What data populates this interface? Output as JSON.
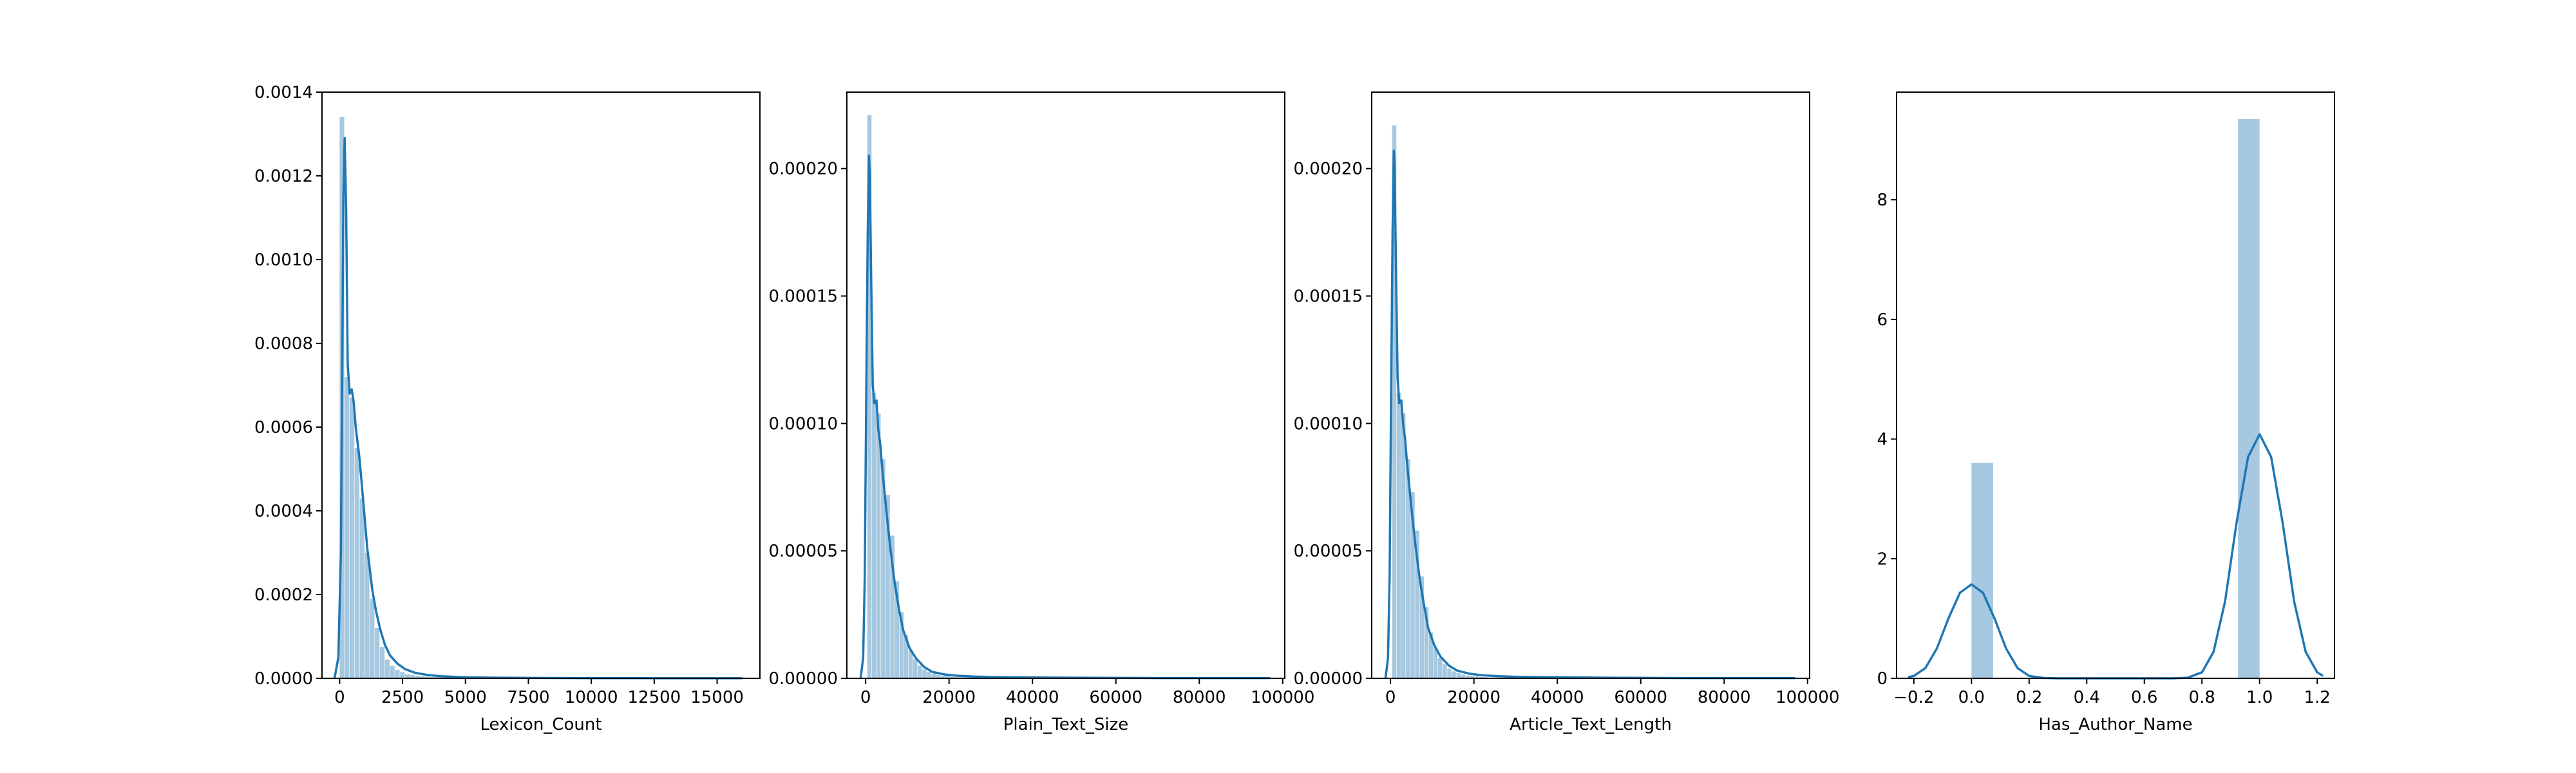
{
  "colors": {
    "hist": "#a6c8e0",
    "kde": "#1f77b4",
    "axes": "#000000"
  },
  "chart_data": [
    {
      "type": "bar",
      "title": "",
      "xlabel": "Lexicon_Count",
      "ylabel": "",
      "xlim": [
        -700,
        16700
      ],
      "ylim": [
        0,
        0.0014
      ],
      "xticks": [
        0,
        2500,
        5000,
        7500,
        10000,
        12500,
        15000
      ],
      "xtick_labels": [
        "0",
        "2500",
        "5000",
        "7500",
        "10000",
        "12500",
        "15000"
      ],
      "yticks": [
        0,
        0.0002,
        0.0004,
        0.0006,
        0.0008,
        0.001,
        0.0012,
        0.0014
      ],
      "ytick_labels": [
        "0.0000",
        "0.0002",
        "0.0004",
        "0.0006",
        "0.0008",
        "0.0010",
        "0.0012",
        "0.0014"
      ],
      "bin_width": 200,
      "bin_start": 0,
      "hist_values": [
        0.00134,
        0.00072,
        0.00067,
        0.00055,
        0.00043,
        0.0003,
        0.00019,
        0.00012,
        7.5e-05,
        4.5e-05,
        3e-05,
        2e-05,
        1.5e-05,
        1e-05,
        8e-06,
        6e-06,
        5e-06,
        4e-06,
        3e-06,
        3e-06,
        2e-06,
        2e-06,
        1.5e-06,
        1.2e-06,
        1e-06,
        1e-06,
        8e-07,
        8e-07,
        6e-07,
        6e-07,
        5e-07,
        5e-07,
        4e-07,
        4e-07,
        3e-07,
        3e-07,
        3e-07,
        2e-07,
        2e-07,
        2e-07
      ],
      "kde": {
        "x": [
          -200,
          -50,
          50,
          100,
          150,
          200,
          260,
          320,
          400,
          480,
          560,
          640,
          720,
          800,
          900,
          1000,
          1100,
          1200,
          1300,
          1450,
          1600,
          1800,
          2000,
          2300,
          2600,
          3000,
          3500,
          4000,
          5000,
          6000,
          8000,
          10000,
          12000,
          14000,
          16000
        ],
        "y": [
          0,
          5e-05,
          0.0003,
          0.0007,
          0.00115,
          0.00129,
          0.00112,
          0.00075,
          0.00068,
          0.00069,
          0.00066,
          0.0006,
          0.00056,
          0.00052,
          0.00045,
          0.00038,
          0.00031,
          0.00026,
          0.00021,
          0.00016,
          0.00012,
          8e-05,
          5.5e-05,
          3.5e-05,
          2.2e-05,
          1.3e-05,
          8e-06,
          5e-06,
          2.5e-06,
          1.5e-06,
          8e-07,
          5e-07,
          3e-07,
          2e-07,
          1e-07
        ]
      }
    },
    {
      "type": "bar",
      "title": "",
      "xlabel": "Plain_Text_Size",
      "ylabel": "",
      "xlim": [
        -4500,
        100500
      ],
      "ylim": [
        0,
        0.00023
      ],
      "xticks": [
        0,
        20000,
        40000,
        60000,
        80000,
        100000
      ],
      "xtick_labels": [
        "0",
        "20000",
        "40000",
        "60000",
        "80000",
        "100000"
      ],
      "yticks": [
        0,
        5e-05,
        0.0001,
        0.00015,
        0.0002
      ],
      "ytick_labels": [
        "0.00000",
        "0.00005",
        "0.00010",
        "0.00015",
        "0.00020"
      ],
      "bin_width": 1100,
      "bin_start": 400,
      "hist_values": [
        0.000221,
        0.000112,
        0.000104,
        8.6e-05,
        7.2e-05,
        5.6e-05,
        3.8e-05,
        2.6e-05,
        1.7e-05,
        1.1e-05,
        7.5e-06,
        5e-06,
        3.5e-06,
        2.5e-06,
        1.8e-06,
        1.3e-06,
        1e-06,
        8e-07,
        6e-07,
        5e-07,
        4e-07,
        3e-07,
        3e-07,
        2e-07,
        2e-07,
        2e-07,
        1e-07,
        1e-07,
        1e-07,
        1e-07,
        1e-07,
        1e-07,
        1e-07,
        1e-07,
        1e-07,
        1e-07,
        1e-07,
        1e-07,
        1e-07,
        1e-07,
        1e-07,
        1e-07,
        1e-07,
        1e-07,
        1e-07,
        1e-07,
        1e-07,
        1e-07,
        1e-07,
        1e-07,
        1e-07,
        1e-07,
        1e-07,
        1e-07,
        1e-07,
        1e-07,
        1e-07,
        1e-07,
        1e-07,
        1e-07,
        1e-07,
        1e-07,
        1e-07,
        1e-07,
        1e-07,
        1e-07,
        1e-07,
        1e-07,
        1e-07,
        1e-07,
        1e-07,
        1e-07,
        1e-07,
        1e-07,
        1e-07,
        1e-07,
        1e-07,
        1e-07,
        1e-07,
        1e-07,
        1e-07,
        1e-07,
        1e-07,
        1e-07,
        1e-07,
        1e-07
      ],
      "kde": {
        "x": [
          -1200,
          -600,
          -200,
          200,
          500,
          800,
          1000,
          1300,
          1700,
          2100,
          2600,
          3000,
          3500,
          4000,
          4600,
          5200,
          6000,
          7000,
          8000,
          9000,
          10500,
          12000,
          14000,
          16000,
          19000,
          22000,
          26000,
          30000,
          40000,
          55000,
          70000,
          85000,
          97000
        ],
        "y": [
          0,
          8e-06,
          4e-05,
          0.00012,
          0.000175,
          0.000205,
          0.000198,
          0.00016,
          0.000115,
          0.000108,
          0.000109,
          9.8e-05,
          9.2e-05,
          8.2e-05,
          7.2e-05,
          6.2e-05,
          5e-05,
          3.7e-05,
          2.7e-05,
          1.9e-05,
          1.2e-05,
          8e-06,
          4.5e-06,
          2.5e-06,
          1.5e-06,
          1e-06,
          7e-07,
          5e-07,
          3e-07,
          2e-07,
          1e-07,
          1e-07,
          1e-07
        ]
      }
    },
    {
      "type": "bar",
      "title": "",
      "xlabel": "Article_Text_Length",
      "ylabel": "",
      "xlim": [
        -4500,
        100500
      ],
      "ylim": [
        0,
        0.00023
      ],
      "xticks": [
        0,
        20000,
        40000,
        60000,
        80000,
        100000
      ],
      "xtick_labels": [
        "0",
        "20000",
        "40000",
        "60000",
        "80000",
        "100000"
      ],
      "yticks": [
        0,
        5e-05,
        0.0001,
        0.00015,
        0.0002
      ],
      "ytick_labels": [
        "0.00000",
        "0.00005",
        "0.00010",
        "0.00015",
        "0.00020"
      ],
      "bin_width": 1100,
      "bin_start": 400,
      "hist_values": [
        0.000217,
        0.000112,
        0.000104,
        8.6e-05,
        7.3e-05,
        5.8e-05,
        4e-05,
        2.8e-05,
        1.8e-05,
        1.2e-05,
        8e-06,
        5.5e-06,
        3.8e-06,
        2.7e-06,
        2e-06,
        1.5e-06,
        1.1e-06,
        9e-07,
        7e-07,
        5e-07,
        4e-07,
        3e-07,
        3e-07,
        2e-07,
        2e-07,
        2e-07,
        1e-07,
        1e-07,
        1e-07,
        1e-07,
        1e-07,
        1e-07,
        1e-07,
        1e-07,
        1e-07,
        1e-07,
        1e-07,
        1e-07,
        1e-07,
        1e-07,
        1e-07,
        1e-07,
        1e-07,
        1e-07,
        1e-07,
        1e-07,
        1e-07,
        1e-07,
        1e-07,
        1e-07,
        1e-07,
        1e-07,
        1e-07,
        1e-07,
        1e-07,
        1e-07,
        1e-07,
        1e-07,
        1e-07,
        1e-07,
        1e-07,
        1e-07,
        1e-07,
        1e-07,
        1e-07,
        1e-07,
        1e-07,
        1e-07,
        1e-07,
        1e-07,
        1e-07,
        1e-07,
        1e-07,
        1e-07,
        1e-07,
        1e-07,
        1e-07,
        1e-07,
        1e-07,
        1e-07,
        1e-07,
        1e-07,
        1e-07,
        1e-07,
        1e-07,
        1e-07
      ],
      "kde": {
        "x": [
          -1200,
          -600,
          -200,
          200,
          500,
          800,
          1000,
          1300,
          1700,
          2100,
          2600,
          3000,
          3500,
          4000,
          4600,
          5200,
          6000,
          7000,
          8000,
          9000,
          10500,
          12000,
          14000,
          16000,
          19000,
          22000,
          26000,
          30000,
          40000,
          55000,
          70000,
          85000,
          97000
        ],
        "y": [
          0,
          8e-06,
          4e-05,
          0.00012,
          0.000175,
          0.000207,
          0.0002,
          0.000162,
          0.000118,
          0.000108,
          0.000109,
          0.0001,
          9.4e-05,
          8.4e-05,
          7.4e-05,
          6.4e-05,
          5.2e-05,
          3.9e-05,
          2.9e-05,
          2e-05,
          1.3e-05,
          8.5e-06,
          5e-06,
          3e-06,
          1.8e-06,
          1.2e-06,
          8e-07,
          6e-07,
          4e-07,
          2e-07,
          1e-07,
          1e-07,
          1e-07
        ]
      }
    },
    {
      "type": "bar",
      "title": "",
      "xlabel": "Has_Author_Name",
      "ylabel": "",
      "xlim": [
        -0.26,
        1.26
      ],
      "ylim": [
        0,
        9.8
      ],
      "xticks": [
        -0.2,
        0.0,
        0.2,
        0.4,
        0.6,
        0.8,
        1.0,
        1.2
      ],
      "xtick_labels": [
        "−0.2",
        "0.0",
        "0.2",
        "0.4",
        "0.6",
        "0.8",
        "1.0",
        "1.2"
      ],
      "yticks": [
        0,
        2,
        4,
        6,
        8
      ],
      "ytick_labels": [
        "0",
        "2",
        "4",
        "6",
        "8"
      ],
      "bars": [
        {
          "x0": 0.0,
          "x1": 0.075,
          "value": 3.6
        },
        {
          "x0": 0.925,
          "x1": 1.0,
          "value": 9.35
        }
      ],
      "kde": {
        "x": [
          -0.22,
          -0.2,
          -0.16,
          -0.12,
          -0.08,
          -0.04,
          0.0,
          0.04,
          0.08,
          0.12,
          0.16,
          0.2,
          0.25,
          0.3,
          0.4,
          0.5,
          0.6,
          0.7,
          0.75,
          0.8,
          0.84,
          0.88,
          0.92,
          0.96,
          1.0,
          1.04,
          1.08,
          1.12,
          1.16,
          1.2,
          1.22
        ],
        "y": [
          0.02,
          0.04,
          0.17,
          0.5,
          1.0,
          1.43,
          1.57,
          1.43,
          1.0,
          0.5,
          0.17,
          0.04,
          0.005,
          0,
          0,
          0,
          0,
          0,
          0.01,
          0.1,
          0.44,
          1.28,
          2.6,
          3.7,
          4.08,
          3.7,
          2.6,
          1.28,
          0.44,
          0.1,
          0.04
        ]
      }
    }
  ]
}
